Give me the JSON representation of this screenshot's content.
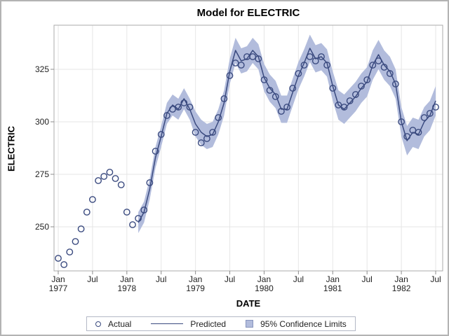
{
  "colors": {
    "line": "#3a4a7f",
    "marker": "#3a4a7f",
    "band": "#b2bcdc",
    "band_edge": "#8794bd",
    "grid": "#e6e6e6",
    "frame": "#ababab",
    "tick": "#8c8c8c",
    "text": "#000000",
    "background": "#ffffff",
    "figure_border": "#b3b3b3"
  },
  "chart_data": {
    "type": "line",
    "title": "Model for ELECTRIC",
    "xlabel": "DATE",
    "ylabel": "ELECTRIC",
    "x_unit": "month",
    "x_range": [
      "Jan 1977",
      "Jul 1982"
    ],
    "n_points": 67,
    "grid": true,
    "legend_position": "bottom",
    "y_ticks": [
      325,
      300,
      275,
      250
    ],
    "ylim": [
      229,
      347
    ],
    "x_tick_labels": [
      {
        "i": 0,
        "month": "Jan",
        "year": "1977"
      },
      {
        "i": 6,
        "month": "Jul",
        "year": ""
      },
      {
        "i": 12,
        "month": "Jan",
        "year": "1978"
      },
      {
        "i": 18,
        "month": "Jul",
        "year": ""
      },
      {
        "i": 24,
        "month": "Jan",
        "year": "1979"
      },
      {
        "i": 30,
        "month": "Jul",
        "year": ""
      },
      {
        "i": 36,
        "month": "Jan",
        "year": "1980"
      },
      {
        "i": 42,
        "month": "Jul",
        "year": ""
      },
      {
        "i": 48,
        "month": "Jan",
        "year": "1981"
      },
      {
        "i": 54,
        "month": "Jul",
        "year": ""
      },
      {
        "i": 60,
        "month": "Jan",
        "year": "1982"
      },
      {
        "i": 66,
        "month": "Jul",
        "year": ""
      }
    ],
    "series": [
      {
        "name": "Actual",
        "style": "circle-markers",
        "start_index": 0,
        "values": [
          235,
          232,
          238,
          243,
          249,
          257,
          263,
          272,
          274,
          276,
          273,
          270,
          257,
          251,
          254,
          258,
          271,
          286,
          294,
          303,
          306,
          307,
          309,
          307,
          295,
          290,
          292,
          295,
          302,
          311,
          322,
          328,
          327,
          331,
          331,
          330,
          320,
          315,
          312,
          305,
          307,
          316,
          323,
          327,
          331,
          329,
          331,
          327,
          316,
          308,
          307,
          310,
          313,
          317,
          320,
          327,
          329,
          326,
          323,
          318,
          300,
          293,
          296,
          295,
          302,
          304,
          307
        ]
      },
      {
        "name": "Predicted",
        "style": "line",
        "start_index": 14,
        "values": [
          252,
          257,
          268,
          283,
          293,
          304,
          308,
          306,
          311,
          306,
          299,
          295,
          293,
          294,
          300,
          309,
          324,
          334,
          329,
          330,
          334,
          331,
          321,
          316,
          313,
          306,
          306,
          314,
          322,
          328,
          335,
          330,
          331,
          328,
          317,
          308,
          306,
          309,
          312,
          316,
          319,
          327,
          332,
          327,
          324,
          318,
          300,
          291,
          295,
          294,
          300,
          303,
          310
        ]
      },
      {
        "name": "95% Confidence Limits",
        "style": "band",
        "start_index": 14,
        "lower": [
          247,
          252,
          263,
          278,
          288,
          299,
          303,
          301,
          306,
          301,
          293,
          289,
          287,
          288,
          294,
          303,
          318,
          328,
          323,
          324,
          328,
          325,
          314.5,
          309.5,
          306.5,
          299.5,
          299.5,
          307.5,
          315.5,
          321.5,
          328.5,
          323.5,
          324.5,
          321.5,
          310,
          301,
          299,
          302,
          305,
          309,
          312,
          320,
          325,
          320,
          317,
          311,
          293,
          284,
          288,
          287,
          293,
          296,
          303
        ],
        "upper": [
          257,
          262,
          273,
          288,
          298,
          309,
          313,
          311,
          316,
          311,
          305,
          301,
          299,
          300,
          306,
          315,
          330,
          340,
          335,
          336,
          340,
          337,
          327.5,
          322.5,
          319.5,
          312.5,
          312.5,
          320.5,
          328.5,
          334.5,
          341.5,
          336.5,
          337.5,
          334.5,
          324,
          315,
          313,
          316,
          319,
          323,
          326,
          334,
          339,
          334,
          331,
          325,
          307,
          298,
          302,
          301,
          307,
          310,
          317
        ]
      }
    ]
  }
}
